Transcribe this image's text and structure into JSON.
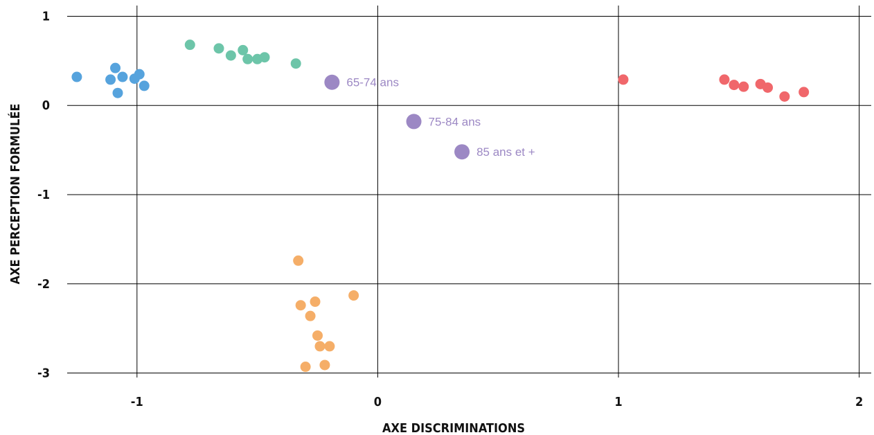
{
  "chart_data": {
    "type": "scatter",
    "xlabel": "AXE DISCRIMINATIONS",
    "ylabel": "AXE PERCEPTION FORMULÉE",
    "xlim": [
      -1.29,
      2.05
    ],
    "ylim": [
      -3.05,
      1.12
    ],
    "xticks": [
      -1,
      0,
      1,
      2
    ],
    "yticks": [
      -3,
      -2,
      -1,
      0,
      1
    ],
    "xtick_labels": [
      "-1",
      "0",
      "1",
      "2"
    ],
    "ytick_labels": [
      "-3",
      "-2",
      "-1",
      "0",
      "1"
    ],
    "grid": true,
    "series": [
      {
        "color": "#56a3dd",
        "points": [
          [
            -1.25,
            0.32
          ],
          [
            -1.09,
            0.42
          ],
          [
            -1.11,
            0.29
          ],
          [
            -1.06,
            0.32
          ],
          [
            -1.01,
            0.3
          ],
          [
            -0.99,
            0.35
          ],
          [
            -0.97,
            0.22
          ],
          [
            -1.08,
            0.14
          ]
        ]
      },
      {
        "color": "#6dc5a9",
        "points": [
          [
            -0.78,
            0.68
          ],
          [
            -0.66,
            0.64
          ],
          [
            -0.61,
            0.56
          ],
          [
            -0.56,
            0.62
          ],
          [
            -0.54,
            0.52
          ],
          [
            -0.5,
            0.52
          ],
          [
            -0.47,
            0.54
          ],
          [
            -0.34,
            0.47
          ]
        ]
      },
      {
        "color": "#f0676b",
        "points": [
          [
            1.02,
            0.29
          ],
          [
            1.44,
            0.29
          ],
          [
            1.48,
            0.23
          ],
          [
            1.52,
            0.21
          ],
          [
            1.59,
            0.24
          ],
          [
            1.62,
            0.2
          ],
          [
            1.69,
            0.1
          ],
          [
            1.77,
            0.15
          ]
        ]
      },
      {
        "color": "#f5ae68",
        "points": [
          [
            -0.33,
            -1.74
          ],
          [
            -0.32,
            -2.24
          ],
          [
            -0.26,
            -2.2
          ],
          [
            -0.28,
            -2.36
          ],
          [
            -0.1,
            -2.13
          ],
          [
            -0.25,
            -2.58
          ],
          [
            -0.24,
            -2.7
          ],
          [
            -0.2,
            -2.7
          ],
          [
            -0.22,
            -2.91
          ],
          [
            -0.3,
            -2.93
          ]
        ]
      },
      {
        "color": "#9c88c4",
        "labeled": true,
        "points": [
          [
            -0.19,
            0.26
          ],
          [
            0.15,
            -0.18
          ],
          [
            0.35,
            -0.52
          ]
        ],
        "labels": [
          "65-74 ans",
          "75-84 ans",
          "85 ans et +"
        ]
      }
    ]
  }
}
